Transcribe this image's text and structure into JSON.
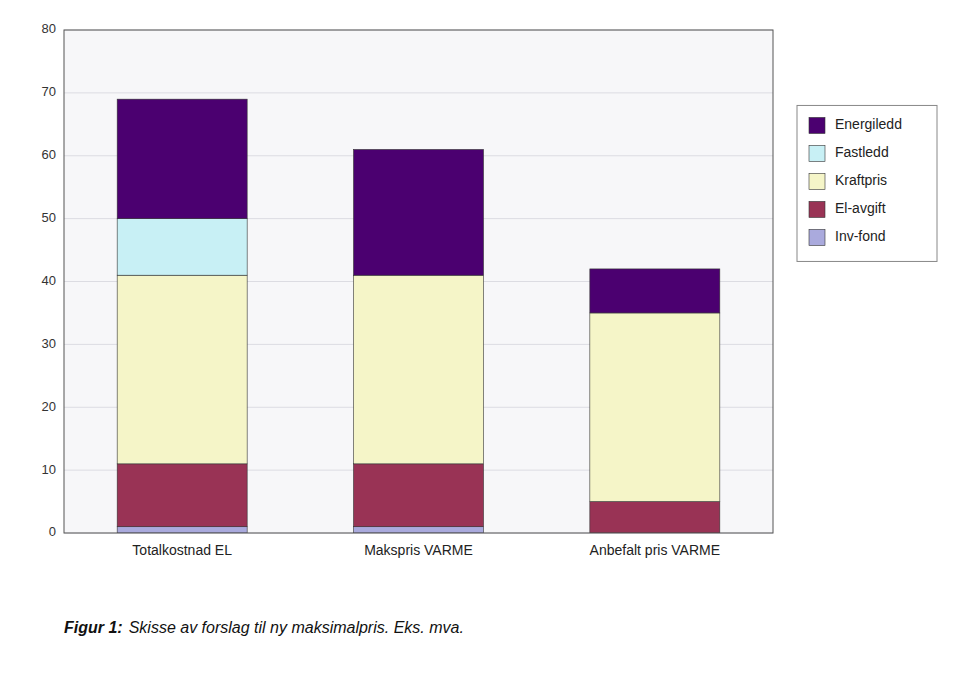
{
  "chart_data": {
    "type": "bar",
    "stacked": true,
    "categories": [
      "Totalkostnad EL",
      "Makspris VARME",
      "Anbefalt pris VARME"
    ],
    "series": [
      {
        "name": "Inv-fond",
        "color": "#aaaadd",
        "values": [
          1,
          1,
          0
        ]
      },
      {
        "name": "El-avgift",
        "color": "#993355",
        "values": [
          10,
          10,
          5
        ]
      },
      {
        "name": "Kraftpris",
        "color": "#f5f5c8",
        "values": [
          30,
          30,
          30
        ]
      },
      {
        "name": "Fastledd",
        "color": "#c8f0f5",
        "values": [
          9,
          0,
          0
        ]
      },
      {
        "name": "Energiledd",
        "color": "#4b0070",
        "values": [
          19,
          20,
          7
        ]
      }
    ],
    "ylim": [
      0,
      80
    ],
    "yticks": [
      0,
      10,
      20,
      30,
      40,
      50,
      60,
      70,
      80
    ],
    "grid": true,
    "legend": "right",
    "annotations": [
      "Figur 1:",
      "Skisse av forslag til ny maksimalpris. Eks. mva."
    ]
  }
}
